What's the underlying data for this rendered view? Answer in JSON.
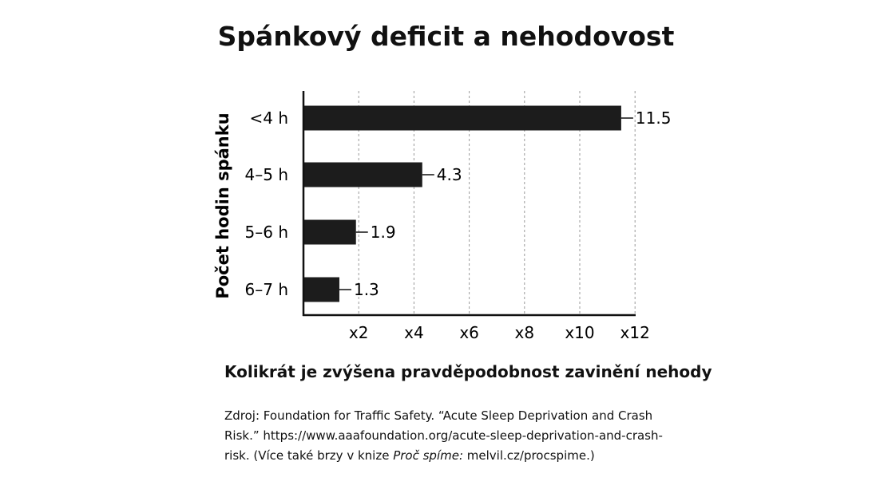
{
  "chart_data": {
    "type": "bar",
    "orientation": "horizontal",
    "title": "Spánkový deficit a nehodovost",
    "ylabel": "Počet hodin spánku",
    "xlabel": "Kolikrát je zvýšena pravděpodobnost zavinění nehody",
    "categories": [
      "<4 h",
      "4–5 h",
      "5–6 h",
      "6–7 h"
    ],
    "values": [
      11.5,
      4.3,
      1.9,
      1.3
    ],
    "value_labels": [
      "11.5",
      "4.3",
      "1.9",
      "1.3"
    ],
    "xlim": [
      0,
      12
    ],
    "xticks": [
      2,
      4,
      6,
      8,
      10,
      12
    ],
    "xtick_labels": [
      "x2",
      "x4",
      "x6",
      "x8",
      "x10",
      "x12"
    ],
    "grid": "vertical dashed",
    "bar_color": "#1c1c1c"
  },
  "source": {
    "line1": "Zdroj: Foundation for Traffic Safety. “Acute Sleep Deprivation and Crash",
    "line2": "Risk.” https://www.aaafoundation.org/acute-sleep-deprivation-and-crash-",
    "line3_start": "risk. (Více také brzy v knize ",
    "line3_italic": "Proč spíme:",
    "line3_end": " melvil.cz/procspime.)"
  }
}
